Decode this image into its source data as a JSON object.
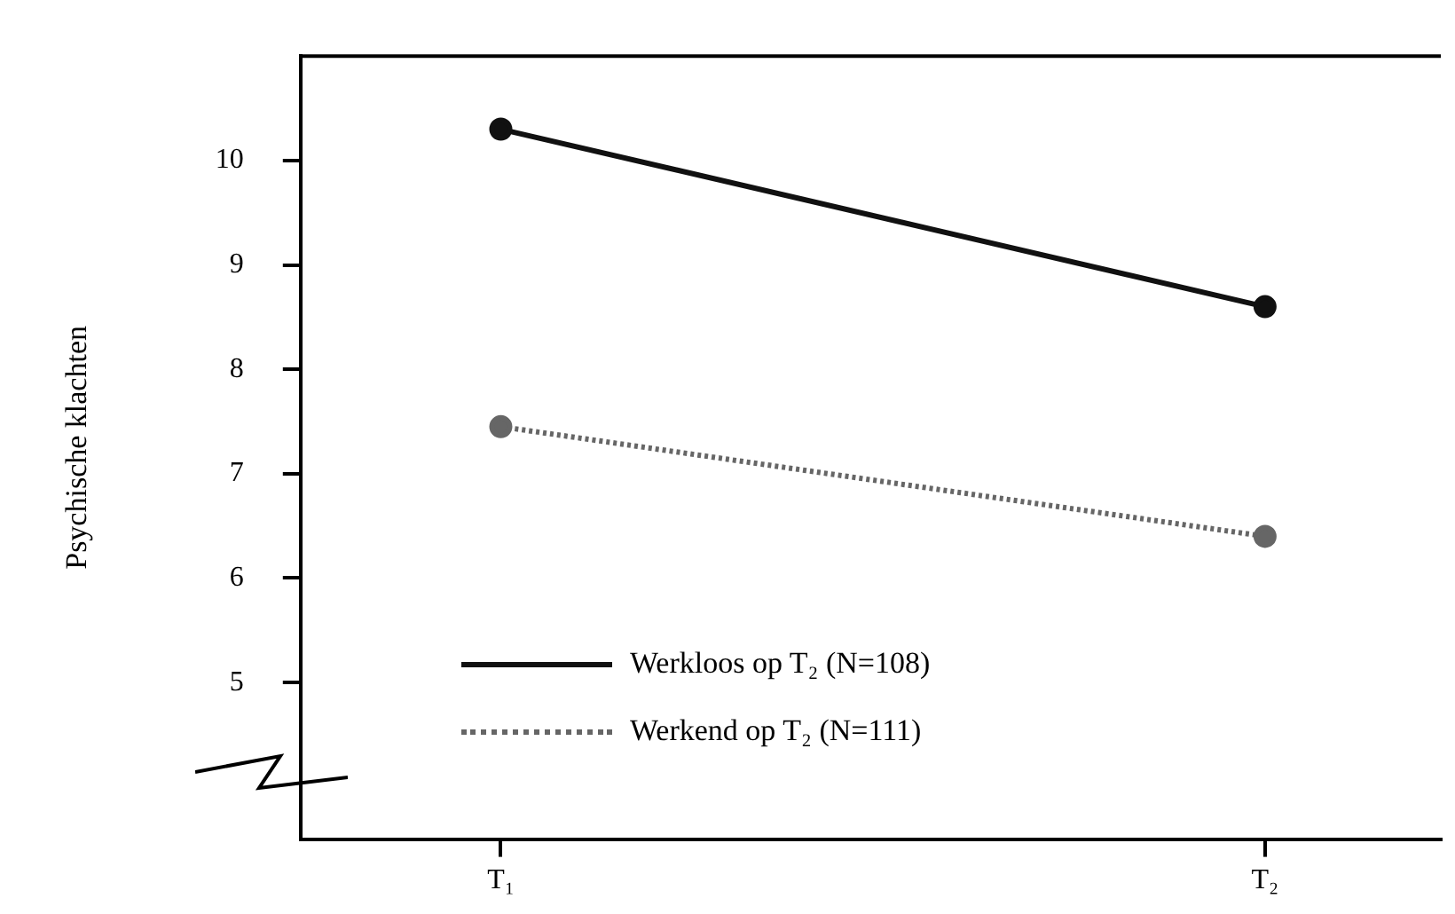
{
  "chart_data": {
    "type": "line",
    "ylabel": "Psychische klachten",
    "categories": [
      "T₁",
      "T₂"
    ],
    "series": [
      {
        "name": "Werkloos op T₂ (N=108)",
        "color": "#111111",
        "values": [
          10.3,
          8.6
        ],
        "line_style": "solid"
      },
      {
        "name": "Werkend op T₂ (N=111)",
        "color": "#666666",
        "values": [
          7.45,
          6.4
        ],
        "line_style": "dotted"
      }
    ],
    "ylim": [
      3.5,
      11
    ],
    "yticks": [
      5,
      6,
      7,
      8,
      9,
      10
    ],
    "grid": false,
    "legend": "bottom left",
    "marker": "circle"
  }
}
